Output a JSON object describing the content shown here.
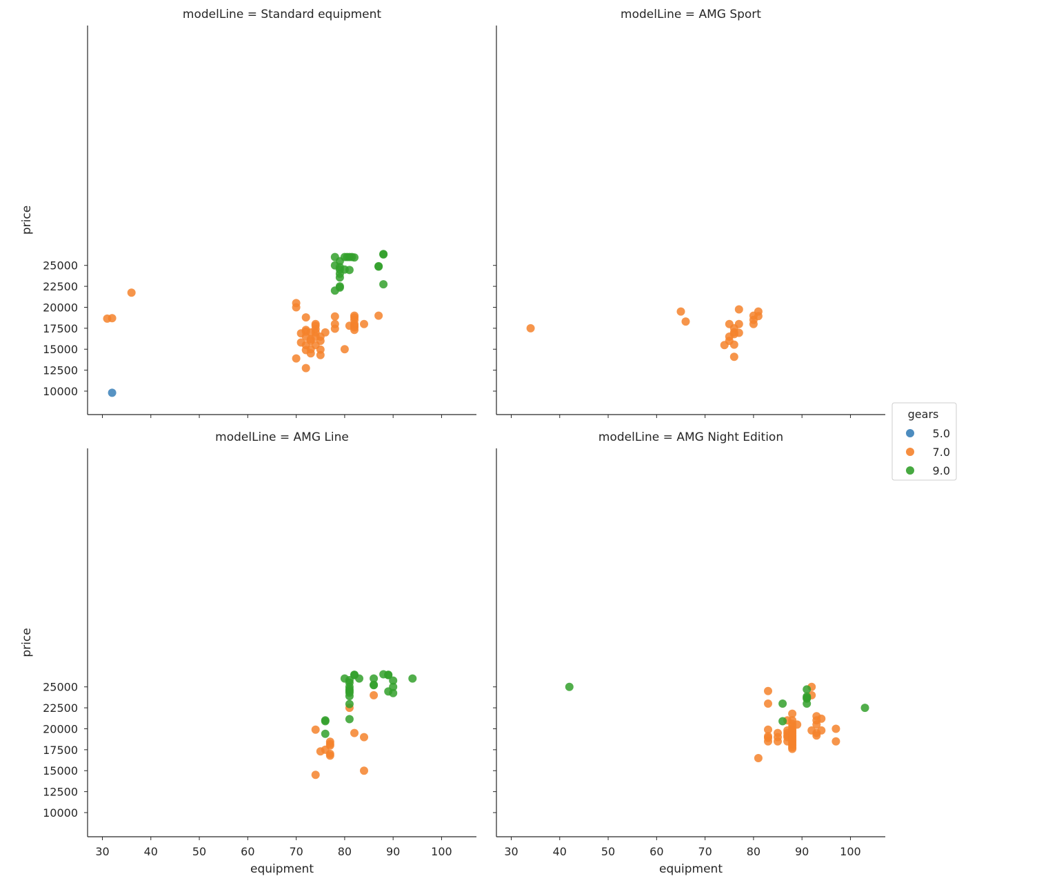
{
  "chart_data": {
    "type": "scatter",
    "x_label": "equipment",
    "y_label": "price",
    "x_ticks": [
      30,
      40,
      50,
      60,
      70,
      80,
      90,
      100
    ],
    "y_ticks": [
      10000,
      12500,
      15000,
      17500,
      20000,
      22500,
      25000
    ],
    "xlim": [
      27,
      107
    ],
    "ylim": [
      8900,
      27600
    ],
    "legend": {
      "title": "gears",
      "placement": "right",
      "entries": [
        {
          "label": "5.0",
          "color": "#3a80b8"
        },
        {
          "label": "7.0",
          "color": "#f5822b"
        },
        {
          "label": "9.0",
          "color": "#33a02c"
        }
      ]
    },
    "panels": [
      {
        "title": "modelLine = Standard equipment",
        "series": [
          {
            "name": "5.0",
            "points": [
              [
                32,
                9800
              ]
            ]
          },
          {
            "name": "7.0",
            "points": [
              [
                31,
                18650
              ],
              [
                32,
                18700
              ],
              [
                36,
                21750
              ],
              [
                70,
                20500
              ],
              [
                70,
                20000
              ],
              [
                70,
                13900
              ],
              [
                71,
                16900
              ],
              [
                71,
                15800
              ],
              [
                72,
                18800
              ],
              [
                72,
                17300
              ],
              [
                72,
                17100
              ],
              [
                72,
                16500
              ],
              [
                72,
                15500
              ],
              [
                72,
                14900
              ],
              [
                72,
                12750
              ],
              [
                73,
                17000
              ],
              [
                73,
                16200
              ],
              [
                73,
                16000
              ],
              [
                73,
                15000
              ],
              [
                73,
                14500
              ],
              [
                74,
                18000
              ],
              [
                74,
                17800
              ],
              [
                74,
                17400
              ],
              [
                74,
                17000
              ],
              [
                74,
                16500
              ],
              [
                74,
                15500
              ],
              [
                75,
                16500
              ],
              [
                75,
                16000
              ],
              [
                75,
                14950
              ],
              [
                75,
                14300
              ],
              [
                76,
                17000
              ],
              [
                78,
                18900
              ],
              [
                78,
                18000
              ],
              [
                78,
                17450
              ],
              [
                80,
                15000
              ],
              [
                81,
                17800
              ],
              [
                82,
                19000
              ],
              [
                82,
                18800
              ],
              [
                82,
                18500
              ],
              [
                82,
                18000
              ],
              [
                82,
                17800
              ],
              [
                82,
                17600
              ],
              [
                82,
                17300
              ],
              [
                84,
                18000
              ],
              [
                87,
                19000
              ]
            ]
          },
          {
            "name": "9.0",
            "points": [
              [
                78,
                26000
              ],
              [
                80,
                26000
              ],
              [
                80.5,
                26000
              ],
              [
                81,
                26000
              ],
              [
                81.5,
                26000
              ],
              [
                82,
                25950
              ],
              [
                78,
                25000
              ],
              [
                79,
                25500
              ],
              [
                79,
                24800
              ],
              [
                79,
                24500
              ],
              [
                80,
                24500
              ],
              [
                81,
                24450
              ],
              [
                79,
                24000
              ],
              [
                79,
                23550
              ],
              [
                79,
                22500
              ],
              [
                79,
                22350
              ],
              [
                78,
                22000
              ],
              [
                87,
                24900
              ],
              [
                87,
                24850
              ],
              [
                88,
                26350
              ],
              [
                88,
                26300
              ],
              [
                88,
                22750
              ]
            ]
          }
        ]
      },
      {
        "title": "modelLine = AMG Sport",
        "series": [
          {
            "name": "7.0",
            "points": [
              [
                34,
                17500
              ],
              [
                65,
                19500
              ],
              [
                66,
                18300
              ],
              [
                77,
                19750
              ],
              [
                81,
                19500
              ],
              [
                80,
                19000
              ],
              [
                81,
                18950
              ],
              [
                80,
                18500
              ],
              [
                80,
                18000
              ],
              [
                75,
                18000
              ],
              [
                77,
                18000
              ],
              [
                76,
                17500
              ],
              [
                76,
                17000
              ],
              [
                77,
                16950
              ],
              [
                76,
                16800
              ],
              [
                75,
                16500
              ],
              [
                75,
                16000
              ],
              [
                74,
                15500
              ],
              [
                76,
                15550
              ],
              [
                76,
                14100
              ]
            ]
          }
        ]
      },
      {
        "title": "modelLine = AMG Line",
        "series": [
          {
            "name": "7.0",
            "points": [
              [
                74,
                19900
              ],
              [
                75,
                17300
              ],
              [
                76,
                17500
              ],
              [
                77,
                18450
              ],
              [
                77,
                18200
              ],
              [
                77,
                18000
              ],
              [
                77,
                17000
              ],
              [
                77,
                16800
              ],
              [
                74,
                14500
              ],
              [
                81,
                22500
              ],
              [
                82,
                19500
              ],
              [
                84,
                19000
              ],
              [
                84,
                15000
              ],
              [
                86,
                24000
              ]
            ]
          },
          {
            "name": "9.0",
            "points": [
              [
                80,
                26000
              ],
              [
                81,
                25800
              ],
              [
                81,
                25500
              ],
              [
                81,
                25000
              ],
              [
                81,
                24700
              ],
              [
                81,
                24500
              ],
              [
                81,
                24300
              ],
              [
                81,
                23900
              ],
              [
                81,
                22950
              ],
              [
                81,
                21150
              ],
              [
                82,
                26450
              ],
              [
                82,
                26400
              ],
              [
                83,
                26000
              ],
              [
                86,
                26000
              ],
              [
                86,
                25250
              ],
              [
                86,
                25200
              ],
              [
                88,
                26500
              ],
              [
                89,
                26450
              ],
              [
                89,
                26400
              ],
              [
                89,
                24450
              ],
              [
                90,
                25750
              ],
              [
                90,
                25000
              ],
              [
                90,
                24250
              ],
              [
                94,
                26000
              ],
              [
                76,
                21000
              ],
              [
                76,
                20900
              ],
              [
                76,
                19400
              ]
            ]
          }
        ]
      },
      {
        "title": "modelLine = AMG Night Edition",
        "series": [
          {
            "name": "7.0",
            "points": [
              [
                83,
                24500
              ],
              [
                83,
                23000
              ],
              [
                83,
                19900
              ],
              [
                83,
                19100
              ],
              [
                83,
                18900
              ],
              [
                83,
                18500
              ],
              [
                85,
                19500
              ],
              [
                85,
                19000
              ],
              [
                85,
                18500
              ],
              [
                87,
                21000
              ],
              [
                87,
                19800
              ],
              [
                87,
                19500
              ],
              [
                87,
                19200
              ],
              [
                87,
                19000
              ],
              [
                87,
                18500
              ],
              [
                88,
                21800
              ],
              [
                88,
                21000
              ],
              [
                88,
                20600
              ],
              [
                88,
                20300
              ],
              [
                88,
                20000
              ],
              [
                88,
                19800
              ],
              [
                88,
                19600
              ],
              [
                88,
                19400
              ],
              [
                88,
                19200
              ],
              [
                88,
                19000
              ],
              [
                88,
                18800
              ],
              [
                88,
                18600
              ],
              [
                88,
                18400
              ],
              [
                88,
                18200
              ],
              [
                88,
                18000
              ],
              [
                88,
                17800
              ],
              [
                88,
                17600
              ],
              [
                89,
                20500
              ],
              [
                81,
                16500
              ],
              [
                92,
                25000
              ],
              [
                92,
                24000
              ],
              [
                92,
                19800
              ],
              [
                93,
                21500
              ],
              [
                93,
                21000
              ],
              [
                93,
                20500
              ],
              [
                93,
                19500
              ],
              [
                93,
                19200
              ],
              [
                94,
                21200
              ],
              [
                94,
                19800
              ],
              [
                97,
                20000
              ],
              [
                97,
                18500
              ]
            ]
          },
          {
            "name": "9.0",
            "points": [
              [
                42,
                25000
              ],
              [
                86,
                23000
              ],
              [
                86,
                20900
              ],
              [
                91,
                24700
              ],
              [
                91,
                23850
              ],
              [
                91,
                23700
              ],
              [
                91,
                23600
              ],
              [
                91,
                23000
              ],
              [
                103,
                22500
              ]
            ]
          }
        ]
      }
    ]
  }
}
